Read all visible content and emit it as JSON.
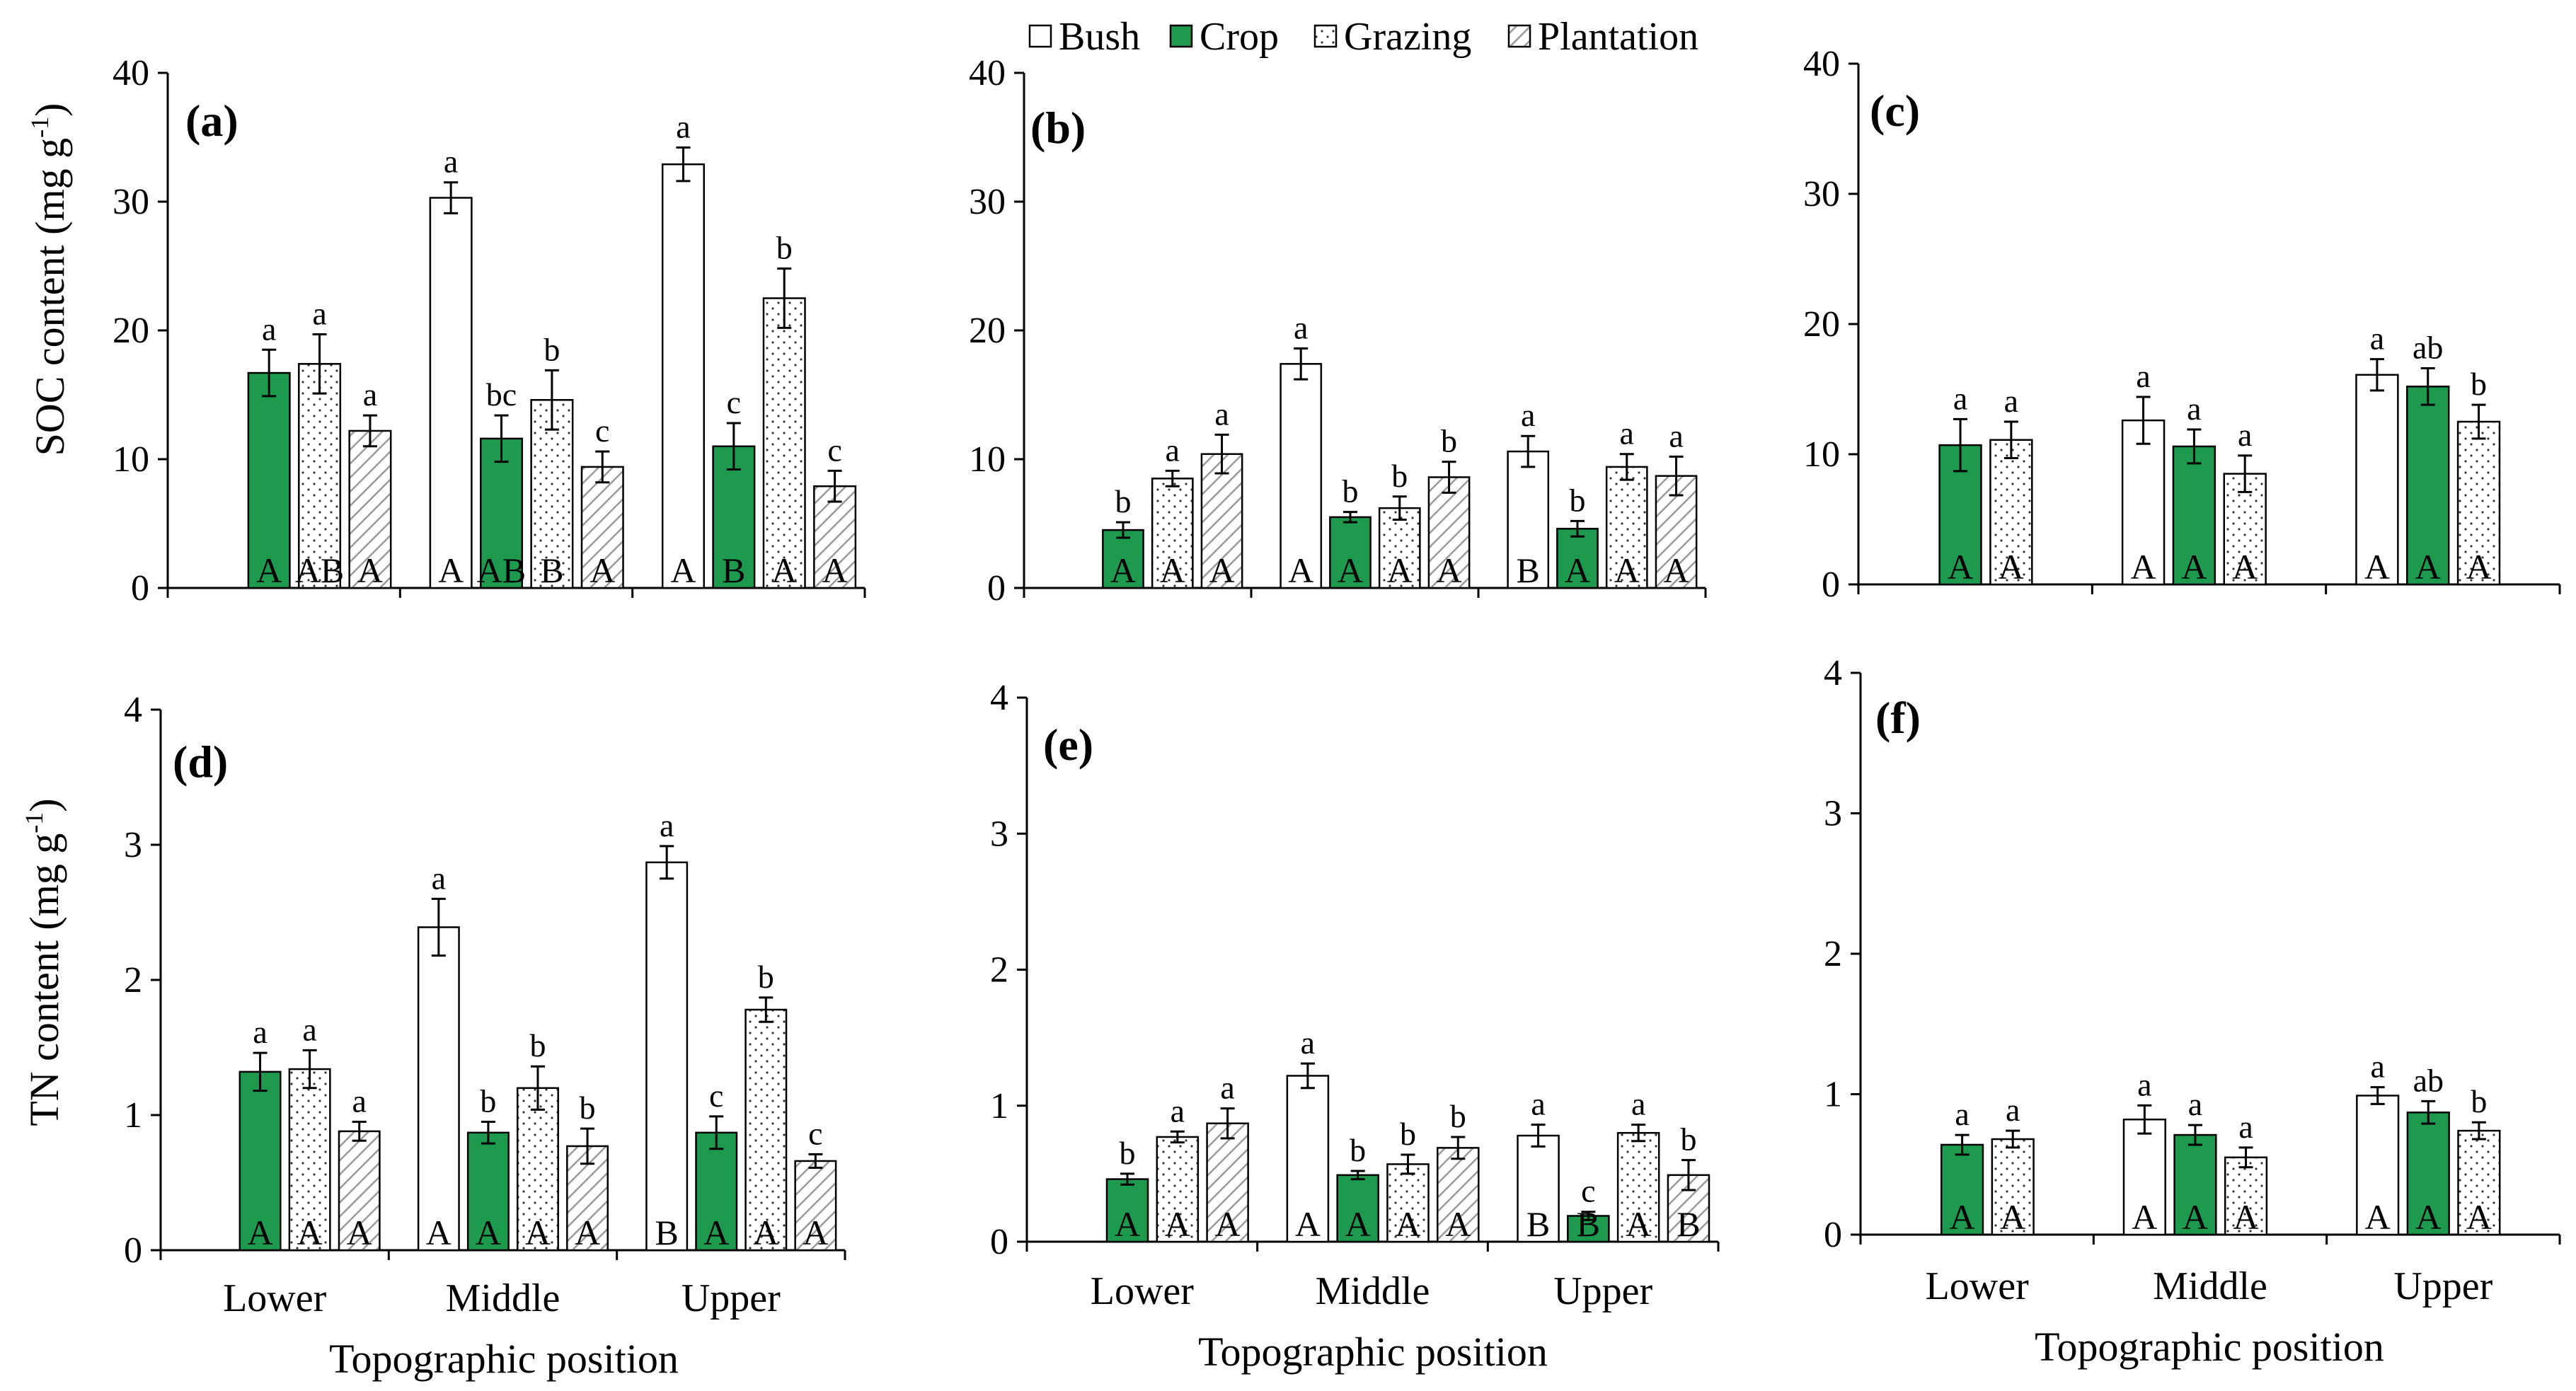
{
  "colors": {
    "crop_fill": "#1e9a4e",
    "bush_fill": "#ffffff",
    "axis": "#000000"
  },
  "legend": [
    {
      "name": "Bush",
      "pattern": "bush"
    },
    {
      "name": "Crop",
      "pattern": "crop"
    },
    {
      "name": "Grazing",
      "pattern": "grazing"
    },
    {
      "name": "Plantation",
      "pattern": "plantation"
    }
  ],
  "labels": {
    "ylabel_soc": "SOC content  (mg g",
    "ylabel_tn": "TN content (mg g",
    "sup": "-1",
    "close": ")",
    "xlabel": "Topographic position"
  },
  "chart_data": [
    {
      "id": "a",
      "tag": "(a)",
      "type": "bar",
      "ylim": [
        0,
        40
      ],
      "ticks": [
        0,
        10,
        20,
        30,
        40
      ],
      "categories": [
        "Lower",
        "Middle",
        "Upper"
      ],
      "groups": [
        {
          "bars": [
            {
              "series": "Crop",
              "value": 16.7,
              "err": 1.8,
              "sig": "a",
              "grp": "A"
            },
            {
              "series": "Grazing",
              "value": 17.4,
              "err": 2.3,
              "sig": "a",
              "grp": "AB"
            },
            {
              "series": "Plantation",
              "value": 12.2,
              "err": 1.2,
              "sig": "a",
              "grp": "A"
            }
          ]
        },
        {
          "bars": [
            {
              "series": "Bush",
              "value": 30.3,
              "err": 1.2,
              "sig": "a",
              "grp": "A"
            },
            {
              "series": "Crop",
              "value": 11.6,
              "err": 1.8,
              "sig": "bc",
              "grp": "AB"
            },
            {
              "series": "Grazing",
              "value": 14.6,
              "err": 2.3,
              "sig": "b",
              "grp": "B"
            },
            {
              "series": "Plantation",
              "value": 9.4,
              "err": 1.2,
              "sig": "c",
              "grp": "A"
            }
          ]
        },
        {
          "bars": [
            {
              "series": "Bush",
              "value": 32.9,
              "err": 1.3,
              "sig": "a",
              "grp": "A"
            },
            {
              "series": "Crop",
              "value": 11.0,
              "err": 1.8,
              "sig": "c",
              "grp": "B"
            },
            {
              "series": "Grazing",
              "value": 22.5,
              "err": 2.3,
              "sig": "b",
              "grp": "A"
            },
            {
              "series": "Plantation",
              "value": 7.9,
              "err": 1.2,
              "sig": "c",
              "grp": "A"
            }
          ]
        }
      ]
    },
    {
      "id": "b",
      "tag": "(b)",
      "type": "bar",
      "ylim": [
        0,
        40
      ],
      "ticks": [
        0,
        10,
        20,
        30,
        40
      ],
      "categories": [
        "Lower",
        "Middle",
        "Upper"
      ],
      "groups": [
        {
          "bars": [
            {
              "series": "Crop",
              "value": 4.5,
              "err": 0.6,
              "sig": "b",
              "grp": "A"
            },
            {
              "series": "Grazing",
              "value": 8.5,
              "err": 0.6,
              "sig": "a",
              "grp": "A"
            },
            {
              "series": "Plantation",
              "value": 10.4,
              "err": 1.5,
              "sig": "a",
              "grp": "A"
            }
          ]
        },
        {
          "bars": [
            {
              "series": "Bush",
              "value": 17.4,
              "err": 1.2,
              "sig": "a",
              "grp": "A"
            },
            {
              "series": "Crop",
              "value": 5.5,
              "err": 0.4,
              "sig": "b",
              "grp": "A"
            },
            {
              "series": "Grazing",
              "value": 6.2,
              "err": 0.9,
              "sig": "b",
              "grp": "A"
            },
            {
              "series": "Plantation",
              "value": 8.6,
              "err": 1.2,
              "sig": "b",
              "grp": "A"
            }
          ]
        },
        {
          "bars": [
            {
              "series": "Bush",
              "value": 10.6,
              "err": 1.2,
              "sig": "a",
              "grp": "B"
            },
            {
              "series": "Crop",
              "value": 4.6,
              "err": 0.6,
              "sig": "b",
              "grp": "A"
            },
            {
              "series": "Grazing",
              "value": 9.4,
              "err": 1.0,
              "sig": "a",
              "grp": "A"
            },
            {
              "series": "Plantation",
              "value": 8.7,
              "err": 1.5,
              "sig": "a",
              "grp": "A"
            }
          ]
        }
      ]
    },
    {
      "id": "c",
      "tag": "(c)",
      "type": "bar",
      "ylim": [
        0,
        40
      ],
      "ticks": [
        0,
        10,
        20,
        30,
        40
      ],
      "categories": [
        "Lower",
        "Middle",
        "Upper"
      ],
      "groups": [
        {
          "bars": [
            {
              "series": "Crop",
              "value": 10.7,
              "err": 2.0,
              "sig": "a",
              "grp": "A"
            },
            {
              "series": "Grazing",
              "value": 11.1,
              "err": 1.4,
              "sig": "a",
              "grp": "A"
            }
          ]
        },
        {
          "bars": [
            {
              "series": "Bush",
              "value": 12.6,
              "err": 1.8,
              "sig": "a",
              "grp": "A"
            },
            {
              "series": "Crop",
              "value": 10.6,
              "err": 1.3,
              "sig": "a",
              "grp": "A"
            },
            {
              "series": "Grazing",
              "value": 8.5,
              "err": 1.4,
              "sig": "a",
              "grp": "A"
            }
          ]
        },
        {
          "bars": [
            {
              "series": "Bush",
              "value": 16.1,
              "err": 1.2,
              "sig": "a",
              "grp": "A"
            },
            {
              "series": "Crop",
              "value": 15.2,
              "err": 1.4,
              "sig": "ab",
              "grp": "A"
            },
            {
              "series": "Grazing",
              "value": 12.5,
              "err": 1.3,
              "sig": "b",
              "grp": "A"
            }
          ]
        }
      ]
    },
    {
      "id": "d",
      "tag": "(d)",
      "type": "bar",
      "ylim": [
        0,
        4
      ],
      "ticks": [
        0,
        1,
        2,
        3,
        4
      ],
      "categories": [
        "Lower",
        "Middle",
        "Upper"
      ],
      "groups": [
        {
          "bars": [
            {
              "series": "Crop",
              "value": 1.32,
              "err": 0.14,
              "sig": "a",
              "grp": "A"
            },
            {
              "series": "Grazing",
              "value": 1.34,
              "err": 0.14,
              "sig": "a",
              "grp": "A"
            },
            {
              "series": "Plantation",
              "value": 0.88,
              "err": 0.07,
              "sig": "a",
              "grp": "A"
            }
          ]
        },
        {
          "bars": [
            {
              "series": "Bush",
              "value": 2.39,
              "err": 0.21,
              "sig": "a",
              "grp": "A"
            },
            {
              "series": "Crop",
              "value": 0.87,
              "err": 0.08,
              "sig": "b",
              "grp": "A"
            },
            {
              "series": "Grazing",
              "value": 1.2,
              "err": 0.16,
              "sig": "b",
              "grp": "A"
            },
            {
              "series": "Plantation",
              "value": 0.77,
              "err": 0.13,
              "sig": "b",
              "grp": "A"
            }
          ]
        },
        {
          "bars": [
            {
              "series": "Bush",
              "value": 2.87,
              "err": 0.12,
              "sig": "a",
              "grp": "B"
            },
            {
              "series": "Crop",
              "value": 0.87,
              "err": 0.12,
              "sig": "c",
              "grp": "A"
            },
            {
              "series": "Grazing",
              "value": 1.78,
              "err": 0.09,
              "sig": "b",
              "grp": "A"
            },
            {
              "series": "Plantation",
              "value": 0.66,
              "err": 0.05,
              "sig": "c",
              "grp": "A"
            }
          ]
        }
      ]
    },
    {
      "id": "e",
      "tag": "(e)",
      "type": "bar",
      "ylim": [
        0,
        4
      ],
      "ticks": [
        0,
        1,
        2,
        3,
        4
      ],
      "categories": [
        "Lower",
        "Middle",
        "Upper"
      ],
      "groups": [
        {
          "bars": [
            {
              "series": "Crop",
              "value": 0.46,
              "err": 0.04,
              "sig": "b",
              "grp": "A"
            },
            {
              "series": "Grazing",
              "value": 0.77,
              "err": 0.04,
              "sig": "a",
              "grp": "A"
            },
            {
              "series": "Plantation",
              "value": 0.87,
              "err": 0.11,
              "sig": "a",
              "grp": "A"
            }
          ]
        },
        {
          "bars": [
            {
              "series": "Bush",
              "value": 1.22,
              "err": 0.09,
              "sig": "a",
              "grp": "A"
            },
            {
              "series": "Crop",
              "value": 0.49,
              "err": 0.03,
              "sig": "b",
              "grp": "A"
            },
            {
              "series": "Grazing",
              "value": 0.57,
              "err": 0.07,
              "sig": "b",
              "grp": "A"
            },
            {
              "series": "Plantation",
              "value": 0.69,
              "err": 0.08,
              "sig": "b",
              "grp": "A"
            }
          ]
        },
        {
          "bars": [
            {
              "series": "Bush",
              "value": 0.78,
              "err": 0.08,
              "sig": "a",
              "grp": "B"
            },
            {
              "series": "Crop",
              "value": 0.19,
              "err": 0.03,
              "sig": "c",
              "grp": "B"
            },
            {
              "series": "Grazing",
              "value": 0.8,
              "err": 0.06,
              "sig": "a",
              "grp": "A"
            },
            {
              "series": "Plantation",
              "value": 0.49,
              "err": 0.11,
              "sig": "b",
              "grp": "B"
            }
          ]
        }
      ]
    },
    {
      "id": "f",
      "tag": "(f)",
      "type": "bar",
      "ylim": [
        0,
        4
      ],
      "ticks": [
        0,
        1,
        2,
        3,
        4
      ],
      "categories": [
        "Lower",
        "Middle",
        "Upper"
      ],
      "groups": [
        {
          "bars": [
            {
              "series": "Crop",
              "value": 0.64,
              "err": 0.07,
              "sig": "a",
              "grp": "A"
            },
            {
              "series": "Grazing",
              "value": 0.68,
              "err": 0.06,
              "sig": "a",
              "grp": "A"
            }
          ]
        },
        {
          "bars": [
            {
              "series": "Bush",
              "value": 0.82,
              "err": 0.1,
              "sig": "a",
              "grp": "A"
            },
            {
              "series": "Crop",
              "value": 0.71,
              "err": 0.07,
              "sig": "a",
              "grp": "A"
            },
            {
              "series": "Grazing",
              "value": 0.55,
              "err": 0.07,
              "sig": "a",
              "grp": "A"
            }
          ]
        },
        {
          "bars": [
            {
              "series": "Bush",
              "value": 0.99,
              "err": 0.06,
              "sig": "a",
              "grp": "A"
            },
            {
              "series": "Crop",
              "value": 0.87,
              "err": 0.08,
              "sig": "ab",
              "grp": "A"
            },
            {
              "series": "Grazing",
              "value": 0.74,
              "err": 0.06,
              "sig": "b",
              "grp": "A"
            }
          ]
        }
      ]
    }
  ]
}
